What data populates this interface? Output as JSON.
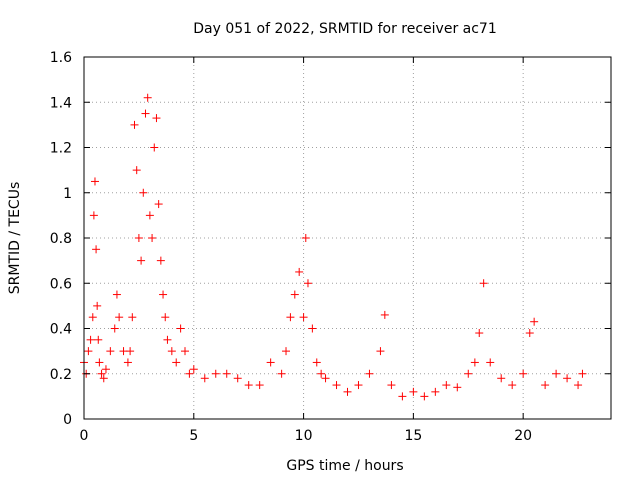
{
  "chart_data": {
    "type": "scatter",
    "title": "Day 051 of 2022, SRMTID for receiver ac71",
    "xlabel": "GPS time / hours",
    "ylabel": "SRMTID / TECUs",
    "xlim": [
      0,
      24
    ],
    "ylim": [
      0,
      1.6
    ],
    "xticks": [
      0,
      5,
      10,
      15,
      20
    ],
    "xtick_labels": [
      "0",
      "5",
      "10",
      "15",
      "20"
    ],
    "yticks": [
      0,
      0.2,
      0.4,
      0.6,
      0.8,
      1.0,
      1.2,
      1.4,
      1.6
    ],
    "ytick_labels": [
      "0",
      "0.2",
      "0.4",
      "0.6",
      "0.8",
      "1",
      "1.2",
      "1.4",
      "1.6"
    ],
    "grid": true,
    "marker": "+",
    "marker_color": "#ff0000",
    "series": [
      {
        "name": "SRMTID",
        "color": "#ff0000",
        "x": [
          0.0,
          0.1,
          0.2,
          0.3,
          0.4,
          0.45,
          0.5,
          0.55,
          0.6,
          0.65,
          0.7,
          0.8,
          0.9,
          1.0,
          1.2,
          1.4,
          1.5,
          1.6,
          1.8,
          2.0,
          2.1,
          2.2,
          2.3,
          2.4,
          2.5,
          2.6,
          2.7,
          2.8,
          2.9,
          3.0,
          3.1,
          3.2,
          3.3,
          3.4,
          3.5,
          3.6,
          3.7,
          3.8,
          4.0,
          4.2,
          4.4,
          4.6,
          4.8,
          5.0,
          5.5,
          6.0,
          6.5,
          7.0,
          7.5,
          8.0,
          8.5,
          9.0,
          9.2,
          9.4,
          9.6,
          9.8,
          10.0,
          10.1,
          10.2,
          10.4,
          10.6,
          10.8,
          11.0,
          11.5,
          12.0,
          12.5,
          13.0,
          13.5,
          13.7,
          14.0,
          14.5,
          15.0,
          15.5,
          16.0,
          16.5,
          17.0,
          17.5,
          17.8,
          18.0,
          18.2,
          18.5,
          19.0,
          19.5,
          20.0,
          20.3,
          20.5,
          21.0,
          21.5,
          22.0,
          22.5,
          22.7
        ],
        "y": [
          0.25,
          0.2,
          0.3,
          0.35,
          0.45,
          0.9,
          1.05,
          0.75,
          0.5,
          0.35,
          0.25,
          0.2,
          0.18,
          0.22,
          0.3,
          0.4,
          0.55,
          0.45,
          0.3,
          0.25,
          0.3,
          0.45,
          1.3,
          1.1,
          0.8,
          0.7,
          1.0,
          1.35,
          1.42,
          0.9,
          0.8,
          1.2,
          1.33,
          0.95,
          0.7,
          0.55,
          0.45,
          0.35,
          0.3,
          0.25,
          0.4,
          0.3,
          0.2,
          0.22,
          0.18,
          0.2,
          0.2,
          0.18,
          0.15,
          0.15,
          0.25,
          0.2,
          0.3,
          0.45,
          0.55,
          0.65,
          0.45,
          0.8,
          0.6,
          0.4,
          0.25,
          0.2,
          0.18,
          0.15,
          0.12,
          0.15,
          0.2,
          0.3,
          0.46,
          0.15,
          0.1,
          0.12,
          0.1,
          0.12,
          0.15,
          0.14,
          0.2,
          0.25,
          0.38,
          0.6,
          0.25,
          0.18,
          0.15,
          0.2,
          0.38,
          0.43,
          0.15,
          0.2,
          0.18,
          0.15,
          0.2
        ]
      }
    ]
  }
}
